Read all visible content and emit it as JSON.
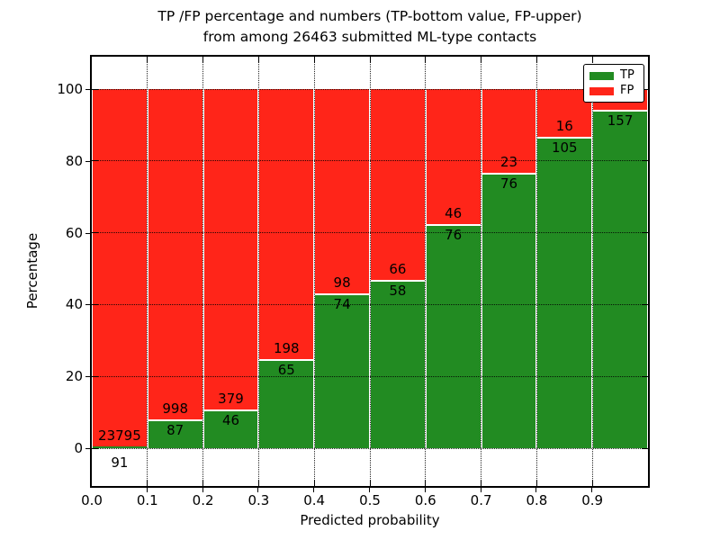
{
  "figure": {
    "title_line1": "TP /FP percentage and numbers (TP-bottom value, FP-upper)",
    "title_line2": "from among 26463 submitted ML-type contacts",
    "xlabel": "Predicted probability",
    "ylabel": "Percentage"
  },
  "legend": {
    "position": "upper right",
    "items": [
      {
        "label": "TP",
        "color": "#228B22"
      },
      {
        "label": "FP",
        "color": "#FF2519"
      }
    ]
  },
  "chart_data": {
    "type": "bar",
    "stacked": true,
    "normalized_to_percent": true,
    "title": "TP /FP percentage and numbers (TP-bottom value, FP-upper) from among 26463 submitted ML-type contacts",
    "total_submitted_contacts": 26463,
    "xlabel": "Predicted probability",
    "ylabel": "Percentage",
    "x_tick_labels": [
      "0.0",
      "0.1",
      "0.2",
      "0.3",
      "0.4",
      "0.5",
      "0.6",
      "0.7",
      "0.8",
      "0.9"
    ],
    "y_tick_labels": [
      "0",
      "20",
      "40",
      "60",
      "80",
      "100"
    ],
    "y_tick_values": [
      0,
      20,
      40,
      60,
      80,
      100
    ],
    "xlim": [
      0.0,
      1.0
    ],
    "ylim": [
      -11,
      109.5
    ],
    "bin_width": 0.1,
    "grid": true,
    "categories": [
      "0.0-0.1",
      "0.1-0.2",
      "0.2-0.3",
      "0.3-0.4",
      "0.4-0.5",
      "0.5-0.6",
      "0.6-0.7",
      "0.7-0.8",
      "0.8-0.9",
      "0.9-1.0"
    ],
    "series": [
      {
        "name": "TP",
        "color": "#228B22",
        "counts": [
          91,
          87,
          46,
          65,
          74,
          58,
          76,
          76,
          105,
          157
        ]
      },
      {
        "name": "FP",
        "color": "#FF2519",
        "counts": [
          23795,
          998,
          379,
          198,
          98,
          66,
          46,
          23,
          16,
          null
        ]
      }
    ],
    "tp_percent": [
      0.38,
      8.02,
      10.82,
      24.71,
      43.02,
      46.77,
      62.3,
      76.77,
      86.78,
      94.2
    ],
    "bar_labels": {
      "tp": [
        "91",
        "87",
        "46",
        "65",
        "74",
        "58",
        "76",
        "76",
        "105",
        "157"
      ],
      "fp": [
        "23795",
        "998",
        "379",
        "198",
        "98",
        "66",
        "46",
        "23",
        "16",
        ""
      ]
    }
  }
}
